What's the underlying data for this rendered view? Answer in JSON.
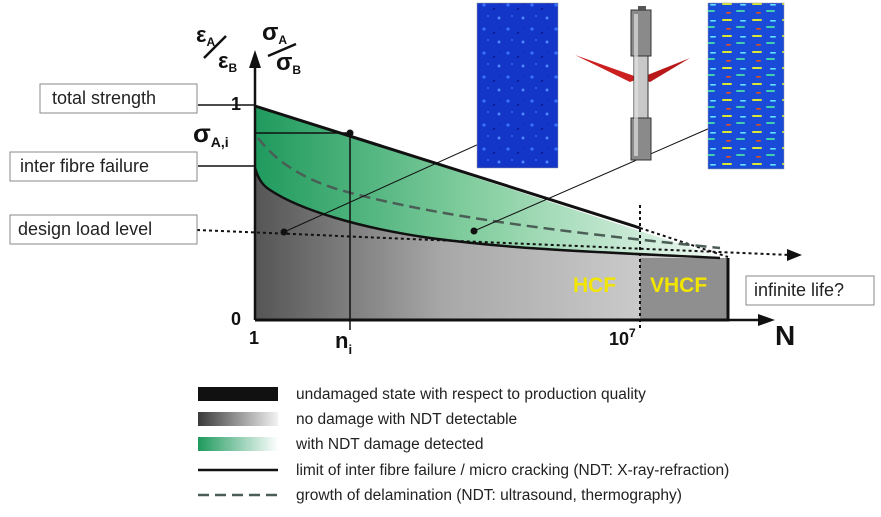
{
  "labels": {
    "total_strength": "total strength",
    "inter_fibre_failure": "inter fibre failure",
    "design_load_level": "design load level",
    "infinite_life": "infinite life?"
  },
  "axis": {
    "y1_num": "ε",
    "y1_num_sub": "A",
    "y1_den": "ε",
    "y1_den_sub": "B",
    "y2_num": "σ",
    "y2_num_sub": "A",
    "y2_den": "σ",
    "y2_den_sub": "B",
    "y_top": "1",
    "y_zero": "0",
    "x_origin": "1",
    "x_n": "n",
    "x_n_sub": "i",
    "x_1e7": "10",
    "x_1e7_sup": "7",
    "x_label": "N",
    "sigma_ai": "σ",
    "sigma_ai_sub": "A,i"
  },
  "zones": {
    "hcf": "HCF",
    "vhcf": "VHCF"
  },
  "legend": [
    {
      "key": "undamaged",
      "text": "undamaged state with respect to production quality"
    },
    {
      "key": "no-damage",
      "text": "no damage with NDT detectable"
    },
    {
      "key": "ndt-damage",
      "text": "with NDT damage detected"
    },
    {
      "key": "ifs-limit",
      "text": "limit of inter fibre failure / micro cracking (NDT: X-ray-refraction)"
    },
    {
      "key": "delamination",
      "text": "growth of delamination  (NDT: ultrasound, thermography)"
    }
  ],
  "colors": {
    "green_dark": "#1f9a5e",
    "green_light": "#e9f6ee",
    "gray_dark": "#6a6a6a",
    "gray_light": "#dcdcdc",
    "zone_text": "#f2e600",
    "thermo_blue": "#1030c8"
  }
}
